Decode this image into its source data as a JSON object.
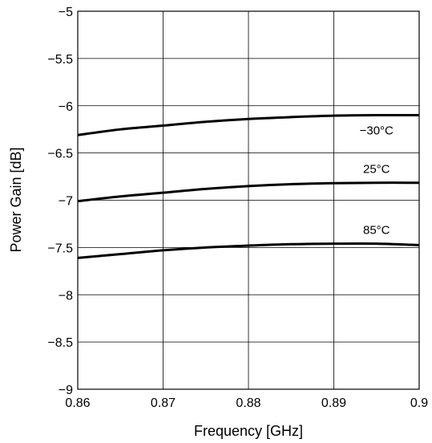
{
  "chart_data": {
    "type": "line",
    "title": "",
    "xlabel": "Frequency [GHz]",
    "ylabel": "Power Gain [dB]",
    "xlim": [
      0.86,
      0.9
    ],
    "ylim": [
      -9,
      -5
    ],
    "grid": true,
    "x_ticks": [
      0.86,
      0.87,
      0.88,
      0.89,
      0.9
    ],
    "x_tick_labels": [
      "0.86",
      "0.87",
      "0.88",
      "0.89",
      "0.9"
    ],
    "y_ticks": [
      -5,
      -5.5,
      -6,
      -6.5,
      -7,
      -7.5,
      -8,
      -8.5,
      -9
    ],
    "y_tick_labels": [
      "−5",
      "−5.5",
      "−6",
      "−6.5",
      "−7",
      "−7.5",
      "−8",
      "−8.5",
      "−9"
    ],
    "series": [
      {
        "label": "−30°C",
        "x": [
          0.86,
          0.865,
          0.87,
          0.875,
          0.88,
          0.885,
          0.89,
          0.895,
          0.9
        ],
        "y": [
          -6.31,
          -6.25,
          -6.21,
          -6.17,
          -6.14,
          -6.12,
          -6.105,
          -6.1,
          -6.1
        ]
      },
      {
        "label": "25°C",
        "x": [
          0.86,
          0.865,
          0.87,
          0.875,
          0.88,
          0.885,
          0.89,
          0.895,
          0.9
        ],
        "y": [
          -7.01,
          -6.96,
          -6.92,
          -6.88,
          -6.85,
          -6.83,
          -6.82,
          -6.815,
          -6.815
        ]
      },
      {
        "label": "85°C",
        "x": [
          0.86,
          0.865,
          0.87,
          0.875,
          0.88,
          0.885,
          0.89,
          0.895,
          0.9
        ],
        "y": [
          -7.61,
          -7.57,
          -7.53,
          -7.5,
          -7.48,
          -7.465,
          -7.46,
          -7.46,
          -7.475
        ]
      }
    ]
  }
}
